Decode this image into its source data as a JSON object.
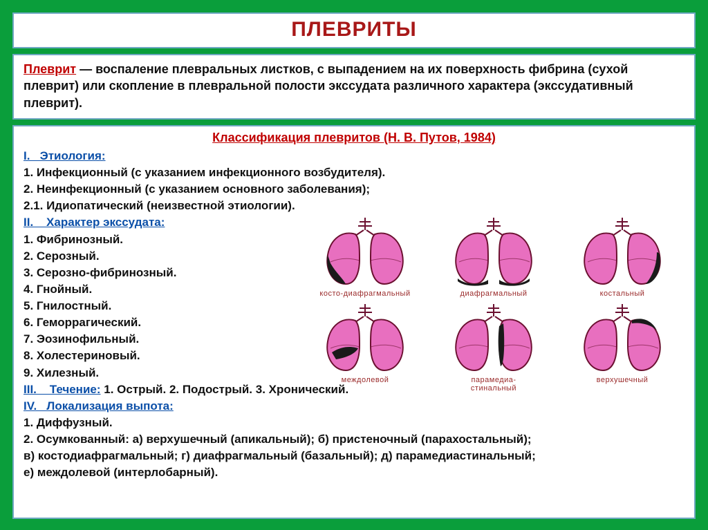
{
  "colors": {
    "page_bg": "#0a9e3b",
    "panel_bg": "#ffffff",
    "panel_border": "#6fa8c2",
    "title_red": "#a81818",
    "term_red": "#c00000",
    "heading_blue": "#0b4fa8",
    "body_text": "#111111",
    "diagram_label": "#9a2a2a",
    "lung_fill": "#e86fbf",
    "lung_stroke": "#6b1030",
    "fluid_fill": "#1a1a1a"
  },
  "fonts": {
    "family": "Arial, sans-serif",
    "title_size": 30,
    "def_size": 18,
    "list_size": 17,
    "diagram_label_size": 11
  },
  "title": "ПЛЕВРИТЫ",
  "definition": {
    "term": "Плеврит",
    "text": " — воспаление плевральных листков, с выпадением на их поверхность фибрина (сухой плеврит) или скопление в плевральной полости экссудата различного характера (экссудативный плеврит)."
  },
  "classification_title": "Классификация плевритов (Н. В. Путов, 1984)",
  "section_I": {
    "heading": "I.   Этиология:",
    "items": [
      "1. Инфекционный (с указанием инфекционного возбудителя).",
      "2. Неинфекционный (с указанием основного заболевания);",
      "2.1. Идиопатический (неизвестной этиологии)."
    ]
  },
  "section_II": {
    "heading": "II.    Характер экссудата:",
    "items": [
      "1. Фибринозный.",
      "2. Серозный.",
      "3. Серозно-фибринозный.",
      "4. Гнойный.",
      "5. Гнилостный.",
      "6. Геморрагический.",
      "7. Эозинофильный.",
      "8. Холестериновый.",
      "9. Хилезный."
    ]
  },
  "section_III": {
    "heading": "III.    Течение:",
    "inline": " 1. Острый. 2. Подострый. 3. Хронический."
  },
  "section_IV": {
    "heading": "IV.   Локализация выпота:",
    "items": [
      "1. Диффузный.",
      "2. Осумкованный: а) верхушечный (апикальный); б) пристеночный (парахостальный);",
      "в) костодиафрагмальный; г) диафрагмальный (базальный); д) парамедиастинальный;",
      "е) междолевой (интерлобарный)."
    ]
  },
  "diagrams": [
    {
      "label": "косто-диафрагмальный",
      "fluid": "cd"
    },
    {
      "label": "диафрагмальный",
      "fluid": "diaph"
    },
    {
      "label": "костальный",
      "fluid": "costal"
    },
    {
      "label": "междолевой",
      "fluid": "interlobar"
    },
    {
      "label": "парамедиа-\nстинальный",
      "fluid": "paramed"
    },
    {
      "label": "верхушечный",
      "fluid": "apical"
    }
  ]
}
